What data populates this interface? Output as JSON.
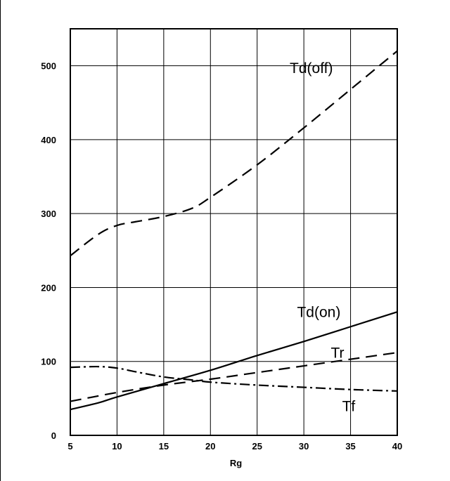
{
  "chart_data": {
    "type": "line",
    "title": "",
    "xlabel": "Rg",
    "ylabel": "",
    "xlim": [
      5,
      40
    ],
    "ylim": [
      0,
      550
    ],
    "xticks": [
      5,
      10,
      15,
      20,
      25,
      30,
      35,
      40
    ],
    "yticks": [
      0,
      100,
      200,
      300,
      400,
      500
    ],
    "grid": true,
    "legend": "none",
    "series": [
      {
        "name": "Td(off)",
        "style": "dashed",
        "x": [
          5,
          8,
          10,
          12,
          15,
          18,
          20,
          25,
          30,
          35,
          40
        ],
        "y": [
          243,
          272,
          284,
          289,
          296,
          307,
          322,
          366,
          416,
          468,
          520
        ]
      },
      {
        "name": "Td(on)",
        "style": "solid",
        "x": [
          5,
          8,
          10,
          15,
          20,
          25,
          30,
          35,
          40
        ],
        "y": [
          35,
          44,
          52,
          70,
          88,
          108,
          127,
          147,
          167
        ]
      },
      {
        "name": "Tr",
        "style": "dashed",
        "x": [
          5,
          10,
          15,
          20,
          25,
          30,
          35,
          40
        ],
        "y": [
          46,
          58,
          68,
          76,
          85,
          94,
          103,
          112
        ]
      },
      {
        "name": "Tf",
        "style": "dash-dot",
        "x": [
          5,
          8,
          10,
          12,
          15,
          18,
          20,
          25,
          30,
          35,
          40
        ],
        "y": [
          92,
          93,
          91,
          86,
          79,
          75,
          72,
          68,
          65,
          62,
          60
        ]
      }
    ]
  }
}
